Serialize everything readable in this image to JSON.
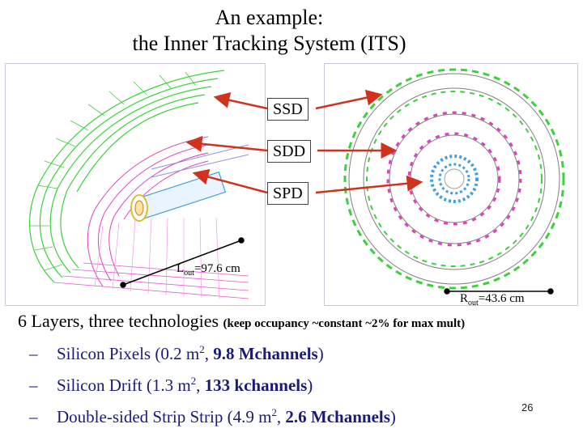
{
  "title": {
    "line1": "An example:",
    "line2": "the Inner Tracking System (ITS)"
  },
  "labels": {
    "ssd": "SSD",
    "sdd": "SDD",
    "spd": "SPD",
    "lout_main": "L",
    "lout_sub": "out",
    "lout_value": "=97.6 cm",
    "rout_main": "R",
    "rout_sub": "out",
    "rout_value": "=43.6 cm"
  },
  "bullets": {
    "main_text": "6 Layers, three technologies",
    "main_note": "(keep occupancy ~constant ~2% for max mult)",
    "items": [
      {
        "name": "Silicon Pixels (0.2 m",
        "sup": "2",
        "sep": ", ",
        "bold": "9.8 Mchannels",
        "end": ")"
      },
      {
        "name": "Silicon Drift (1.3 m",
        "sup": "2",
        "sep": ", ",
        "bold": "133 kchannels",
        "end": ")"
      },
      {
        "name": "Double-sided Strip Strip (4.9 m",
        "sup": "2",
        "sep": ", ",
        "bold": "2.6 Mchannels",
        "end": ")"
      }
    ],
    "dash": "–"
  },
  "page_number": "26",
  "colors": {
    "arrow": "#d0321e",
    "ssd_green": "#3ad23a",
    "sdd_magenta": "#e040c0",
    "spd_cyan": "#40c0e0",
    "text_blue": "#1a1a7a"
  }
}
